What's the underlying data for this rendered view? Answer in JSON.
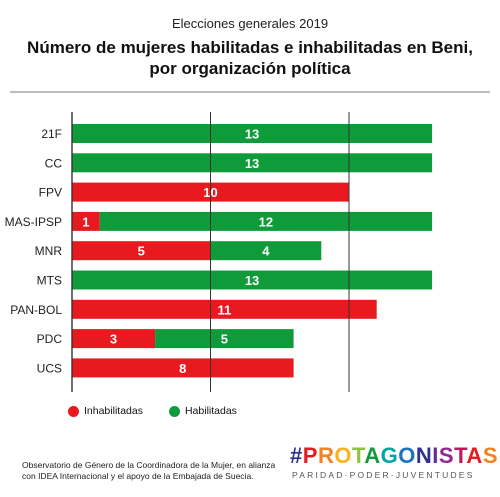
{
  "header": {
    "supertitle": "Elecciones generales 2019",
    "title_line1": "Número de mujeres habilitadas e inhabilitadas en Beni,",
    "title_line2": "por organización política"
  },
  "colors": {
    "inhabilitadas": "#e8191f",
    "habilitadas": "#109b3b",
    "grid": "#333333",
    "rule": "#bdbdbd"
  },
  "chart_data": {
    "type": "bar",
    "orientation": "horizontal",
    "stacked": true,
    "title": "Número de mujeres habilitadas e inhabilitadas en Beni, por organización política",
    "categories": [
      "21F",
      "CC",
      "FPV",
      "MAS-IPSP",
      "MNR",
      "MTS",
      "PAN-BOL",
      "PDC",
      "UCS"
    ],
    "series": [
      {
        "name": "Inhabilitadas",
        "color": "#e8191f",
        "values": [
          0,
          0,
          10,
          1,
          5,
          0,
          11,
          3,
          8
        ]
      },
      {
        "name": "Habilitadas",
        "color": "#109b3b",
        "values": [
          13,
          13,
          0,
          12,
          4,
          13,
          0,
          5,
          0
        ]
      }
    ],
    "xlim": [
      0,
      15
    ],
    "grid": "vertical lines",
    "legend_position": "bottom-left"
  },
  "legend": {
    "inhabilitadas_label": "Inhabilitadas",
    "habilitadas_label": "Habilitadas"
  },
  "footnote": {
    "line1": "Observatorio de Género de la Coordinadora de la Mujer, en alianza",
    "line2": "con IDEA Internacional y el apoyo de la Embajada de Suecia."
  },
  "logo": {
    "hash": "#",
    "letters": [
      "P",
      "R",
      "O",
      "T",
      "A",
      "G",
      "O",
      "N",
      "I",
      "S",
      "T",
      "A",
      "S"
    ],
    "letter_colors": [
      "#e8191f",
      "#f58220",
      "#f9b31b",
      "#8cc63f",
      "#109b3b",
      "#00a6a6",
      "#1c75bc",
      "#2e3192",
      "#662d91",
      "#92278f",
      "#c2185b",
      "#e8191f",
      "#f58220"
    ],
    "hash_color": "#2e3192",
    "tagline": "PARIDAD·PODER·JUVENTUDES"
  }
}
